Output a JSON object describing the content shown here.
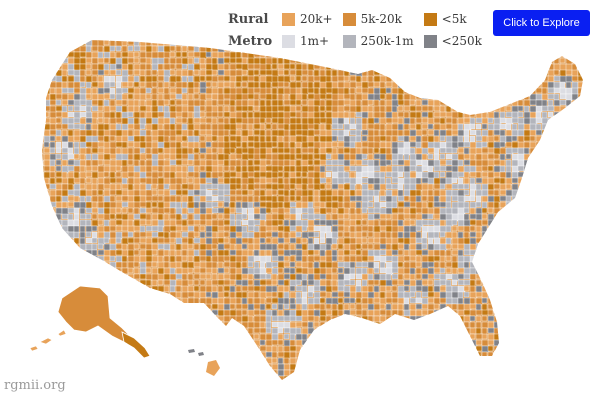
{
  "legend": {
    "groups": [
      {
        "label": "Rural",
        "items": [
          {
            "label": "20k+",
            "color": "#e8a35a"
          },
          {
            "label": "5k-20k",
            "color": "#d78c3a"
          },
          {
            "label": "<5k",
            "color": "#c47a14"
          }
        ]
      },
      {
        "label": "Metro",
        "items": [
          {
            "label": "1m+",
            "color": "#dcdde3"
          },
          {
            "label": "250k-1m",
            "color": "#b3b5bc"
          },
          {
            "label": "<250k",
            "color": "#808288"
          }
        ]
      }
    ]
  },
  "explore_button": {
    "label": "Click to Explore"
  },
  "watermark": "rgmii.org",
  "colors": {
    "border": "#ffffff"
  }
}
